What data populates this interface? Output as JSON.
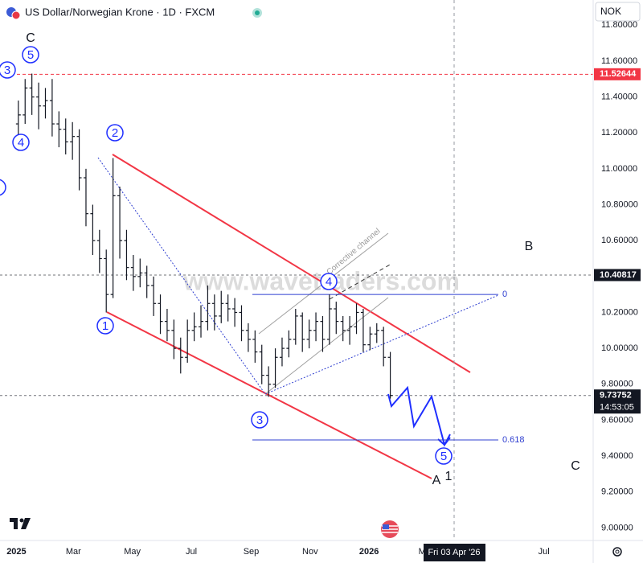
{
  "chart_data": {
    "type": "ohlc",
    "title": "US Dollar/Norwegian Krone · 1D · FXCM",
    "currency": "NOK",
    "watermark": "www.wavetraders.com",
    "channel_label": "Corrective channel",
    "crosshair_label": "Fri 03 Apr '26",
    "countdown": "14:53:05",
    "color": "#131722",
    "grid": false,
    "xlim": [
      "2024-12-15",
      "2026-08-21"
    ],
    "ylim": [
      8.93,
      11.94
    ],
    "yticks": [
      {
        "value": 9.0,
        "label": "9.00000"
      },
      {
        "value": 9.2,
        "label": "9.20000"
      },
      {
        "value": 9.4,
        "label": "9.40000"
      },
      {
        "value": 9.6,
        "label": "9.60000"
      },
      {
        "value": 9.8,
        "label": "9.80000"
      },
      {
        "value": 10.0,
        "label": "10.00000"
      },
      {
        "value": 10.2,
        "label": "10.20000"
      },
      {
        "value": 10.4,
        "label": "10.40000"
      },
      {
        "value": 10.6,
        "label": "10.60000"
      },
      {
        "value": 10.8,
        "label": "10.80000"
      },
      {
        "value": 11.0,
        "label": "11.00000"
      },
      {
        "value": 11.2,
        "label": "11.20000"
      },
      {
        "value": 11.4,
        "label": "11.40000"
      },
      {
        "value": 11.6,
        "label": "11.60000"
      },
      {
        "value": 11.8,
        "label": "11.80000"
      }
    ],
    "xticks": [
      {
        "value": "2025-01-01",
        "label": "2025"
      },
      {
        "value": "2025-03-01",
        "label": "Mar"
      },
      {
        "value": "2025-05-01",
        "label": "May"
      },
      {
        "value": "2025-07-01",
        "label": "Jul"
      },
      {
        "value": "2025-09-01",
        "label": "Sep"
      },
      {
        "value": "2025-11-01",
        "label": "Nov"
      },
      {
        "value": "2026-01-01",
        "label": "2026"
      },
      {
        "value": "2026-03-01",
        "label": "Mar"
      },
      {
        "value": "2026-07-01",
        "label": "Jul"
      }
    ],
    "x": [
      "2025-01-03",
      "2025-01-10",
      "2025-01-17",
      "2025-01-24",
      "2025-01-31",
      "2025-02-07",
      "2025-02-14",
      "2025-02-21",
      "2025-02-28",
      "2025-03-07",
      "2025-03-14",
      "2025-03-21",
      "2025-03-28",
      "2025-04-04",
      "2025-04-11",
      "2025-04-18",
      "2025-04-25",
      "2025-05-02",
      "2025-05-09",
      "2025-05-16",
      "2025-05-23",
      "2025-05-30",
      "2025-06-06",
      "2025-06-13",
      "2025-06-20",
      "2025-06-27",
      "2025-07-04",
      "2025-07-11",
      "2025-07-18",
      "2025-07-25",
      "2025-08-01",
      "2025-08-08",
      "2025-08-15",
      "2025-08-22",
      "2025-08-29",
      "2025-09-05",
      "2025-09-12",
      "2025-09-19",
      "2025-09-26",
      "2025-10-03",
      "2025-10-10",
      "2025-10-17",
      "2025-10-24",
      "2025-10-31",
      "2025-11-07",
      "2025-11-14",
      "2025-11-21",
      "2025-11-28",
      "2025-12-05",
      "2025-12-12",
      "2025-12-19",
      "2025-12-26",
      "2026-01-02",
      "2026-01-09",
      "2026-01-16",
      "2026-01-23"
    ],
    "open": [
      11.25,
      11.3,
      11.45,
      11.4,
      11.35,
      11.38,
      11.25,
      11.22,
      11.15,
      11.18,
      10.95,
      10.75,
      10.6,
      10.5,
      10.3,
      10.85,
      10.6,
      10.45,
      10.4,
      10.42,
      10.35,
      10.25,
      10.15,
      10.1,
      10.0,
      9.95,
      10.1,
      10.12,
      10.15,
      10.25,
      10.18,
      10.25,
      10.22,
      10.2,
      10.1,
      10.05,
      9.98,
      9.85,
      9.8,
      9.95,
      10.0,
      10.05,
      10.18,
      10.05,
      10.1,
      10.15,
      10.05,
      10.22,
      10.15,
      10.1,
      10.12,
      10.2,
      10.02,
      10.08,
      10.1,
      9.95
    ],
    "high": [
      11.38,
      11.5,
      11.53,
      11.48,
      11.45,
      11.5,
      11.32,
      11.28,
      11.26,
      11.22,
      11.0,
      10.8,
      10.66,
      10.55,
      11.06,
      10.9,
      10.66,
      10.52,
      10.5,
      10.46,
      10.4,
      10.3,
      10.22,
      10.16,
      10.06,
      10.16,
      10.2,
      10.24,
      10.35,
      10.3,
      10.32,
      10.3,
      10.28,
      10.24,
      10.14,
      10.1,
      10.02,
      9.9,
      10.0,
      10.06,
      10.1,
      10.22,
      10.2,
      10.16,
      10.2,
      10.18,
      10.3,
      10.26,
      10.18,
      10.18,
      10.25,
      10.22,
      10.12,
      10.14,
      10.12,
      9.98
    ],
    "low": [
      11.1,
      11.25,
      11.3,
      11.22,
      11.28,
      11.18,
      11.12,
      11.08,
      11.05,
      10.88,
      10.68,
      10.52,
      10.42,
      10.2,
      10.28,
      10.5,
      10.38,
      10.32,
      10.34,
      10.28,
      10.18,
      10.08,
      10.04,
      9.94,
      9.86,
      9.92,
      10.04,
      10.06,
      10.1,
      10.1,
      10.14,
      10.15,
      10.12,
      10.04,
      9.98,
      9.92,
      9.8,
      9.73,
      9.78,
      9.9,
      9.95,
      10.02,
      9.98,
      10.0,
      10.04,
      9.98,
      10.02,
      10.08,
      10.04,
      10.02,
      10.08,
      9.98,
      9.99,
      10.03,
      9.9,
      9.72
    ],
    "close": [
      11.3,
      11.45,
      11.4,
      11.35,
      11.38,
      11.25,
      11.22,
      11.15,
      11.18,
      10.95,
      10.75,
      10.6,
      10.5,
      10.3,
      10.85,
      10.6,
      10.45,
      10.4,
      10.42,
      10.35,
      10.25,
      10.15,
      10.1,
      10.0,
      9.95,
      10.1,
      10.12,
      10.15,
      10.25,
      10.18,
      10.25,
      10.22,
      10.2,
      10.1,
      10.05,
      9.98,
      9.85,
      9.8,
      9.95,
      10.0,
      10.05,
      10.18,
      10.05,
      10.1,
      10.15,
      10.05,
      10.22,
      10.15,
      10.1,
      10.12,
      10.2,
      10.02,
      10.08,
      10.1,
      9.95,
      9.73752
    ],
    "price_lines": [
      {
        "value": 11.52644,
        "color": "#f23645"
      },
      {
        "value": 10.40817,
        "color": "#131722"
      },
      {
        "value": 9.73752,
        "color": "#131722"
      }
    ],
    "fib_levels": [
      {
        "level": 0,
        "price": 10.3
      },
      {
        "level": 0.618,
        "price": 9.49
      }
    ],
    "wave_labels": [
      {
        "text": "3",
        "circled": true
      },
      {
        "text": "5",
        "circled": true
      },
      {
        "text": "C",
        "circled": false
      },
      {
        "text": "4",
        "circled": true
      },
      {
        "text": "2",
        "circled": true
      },
      {
        "text": "1",
        "circled": true
      },
      {
        "text": "4",
        "circled": true
      },
      {
        "text": "3",
        "circled": true
      },
      {
        "text": "5",
        "circled": true
      },
      {
        "text": "B",
        "circled": false
      },
      {
        "text": "C",
        "circled": false
      },
      {
        "text": "A",
        "circled": false
      },
      {
        "text": "1",
        "circled": false
      }
    ]
  }
}
